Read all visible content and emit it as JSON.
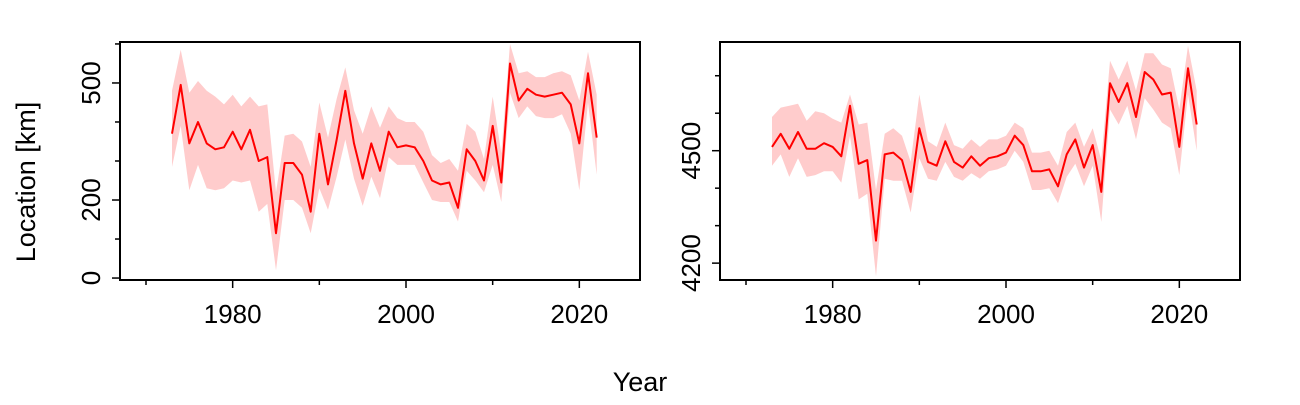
{
  "colors": {
    "line": "#ff0000",
    "band": "#ffcccc",
    "axis": "#000000"
  },
  "labels": {
    "xlabel": "Year",
    "ylabel": "Location [km]"
  },
  "chart_data": [
    {
      "type": "line",
      "xlim": [
        1967,
        2027
      ],
      "ylim": [
        -5,
        605
      ],
      "x_ticks": [
        1980,
        2000,
        2020
      ],
      "x_minor_ticks": [
        1970,
        1990,
        2010
      ],
      "y_ticks": [
        0,
        200,
        500
      ],
      "y_minor_ticks": [
        100,
        300,
        400,
        600
      ],
      "x": [
        1973,
        1974,
        1975,
        1976,
        1977,
        1978,
        1979,
        1980,
        1981,
        1982,
        1983,
        1984,
        1985,
        1986,
        1987,
        1988,
        1989,
        1990,
        1991,
        1992,
        1993,
        1994,
        1995,
        1996,
        1997,
        1998,
        1999,
        2000,
        2001,
        2002,
        2003,
        2004,
        2005,
        2006,
        2007,
        2008,
        2009,
        2010,
        2011,
        2012,
        2013,
        2014,
        2015,
        2016,
        2017,
        2018,
        2019,
        2020,
        2021,
        2022
      ],
      "y": [
        370,
        495,
        345,
        400,
        345,
        330,
        335,
        375,
        330,
        380,
        300,
        310,
        115,
        295,
        295,
        265,
        170,
        370,
        240,
        355,
        480,
        345,
        255,
        345,
        275,
        375,
        335,
        340,
        335,
        300,
        250,
        240,
        245,
        180,
        330,
        300,
        250,
        390,
        245,
        550,
        455,
        485,
        470,
        465,
        470,
        475,
        445,
        345,
        525,
        360
      ],
      "lower": [
        285,
        390,
        225,
        290,
        230,
        225,
        230,
        250,
        245,
        250,
        170,
        190,
        20,
        200,
        200,
        180,
        115,
        230,
        175,
        260,
        355,
        255,
        185,
        260,
        205,
        310,
        290,
        290,
        290,
        245,
        200,
        195,
        195,
        145,
        275,
        250,
        220,
        290,
        195,
        475,
        410,
        440,
        415,
        410,
        410,
        420,
        370,
        225,
        450,
        265
      ],
      "upper": [
        480,
        585,
        475,
        505,
        480,
        465,
        445,
        470,
        440,
        465,
        440,
        445,
        220,
        365,
        370,
        350,
        285,
        450,
        360,
        460,
        540,
        430,
        370,
        440,
        385,
        440,
        410,
        400,
        400,
        375,
        315,
        295,
        305,
        275,
        395,
        375,
        305,
        465,
        320,
        600,
        525,
        530,
        515,
        515,
        525,
        530,
        520,
        455,
        580,
        470
      ]
    },
    {
      "type": "line",
      "xlim": [
        1967,
        2027
      ],
      "ylim": [
        4155,
        4790
      ],
      "x_ticks": [
        1980,
        2000,
        2020
      ],
      "x_minor_ticks": [
        1970,
        1990,
        2010
      ],
      "y_ticks": [
        4200,
        4500
      ],
      "y_minor_ticks": [
        4300,
        4400,
        4600,
        4700
      ],
      "x": [
        1973,
        1974,
        1975,
        1976,
        1977,
        1978,
        1979,
        1980,
        1981,
        1982,
        1983,
        1984,
        1985,
        1986,
        1987,
        1988,
        1989,
        1990,
        1991,
        1992,
        1993,
        1994,
        1995,
        1996,
        1997,
        1998,
        1999,
        2000,
        2001,
        2002,
        2003,
        2004,
        2005,
        2006,
        2007,
        2008,
        2009,
        2010,
        2011,
        2012,
        2013,
        2014,
        2015,
        2016,
        2017,
        2018,
        2019,
        2020,
        2021,
        2022
      ],
      "y": [
        4510,
        4545,
        4505,
        4550,
        4505,
        4505,
        4520,
        4510,
        4485,
        4620,
        4465,
        4475,
        4260,
        4490,
        4495,
        4475,
        4390,
        4560,
        4470,
        4460,
        4525,
        4470,
        4455,
        4485,
        4460,
        4480,
        4485,
        4495,
        4540,
        4515,
        4445,
        4445,
        4450,
        4405,
        4490,
        4530,
        4455,
        4515,
        4390,
        4680,
        4630,
        4680,
        4590,
        4710,
        4690,
        4650,
        4655,
        4510,
        4720,
        4570
      ],
      "lower": [
        4460,
        4490,
        4430,
        4480,
        4430,
        4435,
        4445,
        4445,
        4415,
        4540,
        4370,
        4385,
        4165,
        4425,
        4420,
        4420,
        4335,
        4480,
        4425,
        4420,
        4470,
        4430,
        4420,
        4440,
        4425,
        4445,
        4450,
        4460,
        4500,
        4470,
        4395,
        4395,
        4400,
        4360,
        4430,
        4465,
        4405,
        4460,
        4310,
        4610,
        4570,
        4620,
        4530,
        4640,
        4610,
        4575,
        4560,
        4435,
        4650,
        4500
      ],
      "upper": [
        4590,
        4615,
        4620,
        4625,
        4580,
        4605,
        4600,
        4585,
        4575,
        4650,
        4570,
        4575,
        4395,
        4545,
        4560,
        4540,
        4470,
        4650,
        4525,
        4510,
        4575,
        4515,
        4505,
        4530,
        4510,
        4530,
        4530,
        4540,
        4575,
        4560,
        4495,
        4495,
        4500,
        4460,
        4550,
        4575,
        4510,
        4560,
        4475,
        4740,
        4690,
        4740,
        4660,
        4760,
        4760,
        4730,
        4720,
        4610,
        4780,
        4660
      ]
    }
  ]
}
